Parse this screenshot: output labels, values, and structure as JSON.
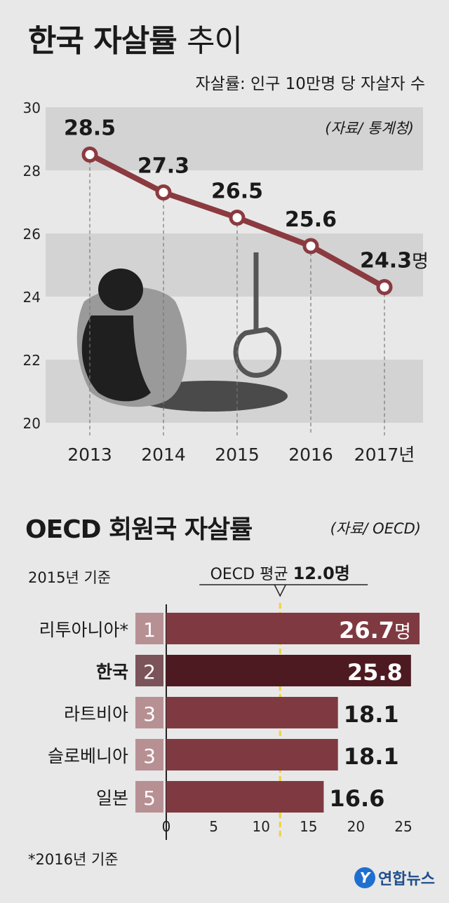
{
  "header": {
    "title_bold": "한국 자살률",
    "title_light": "추이",
    "subtitle": "자살률: 인구 10만명 당 자살자 수",
    "source": "(자료/ 통계청)"
  },
  "section2": {
    "title": "OECD 회원국 자살률",
    "source": "(자료/ OECD)",
    "basis": "2015년 기준",
    "avg_label": "OECD 평균",
    "avg_value": "12.0명",
    "footnote": "*2016년 기준"
  },
  "logo": {
    "glyph": "Y",
    "text": "연합뉴스"
  },
  "colors": {
    "line": "#8b3a40",
    "bar": "#7f3a41",
    "bar_highlight": "#4d1a21",
    "rank_box": "#b79094",
    "rank_box_highlight": "#7a5458",
    "band": "#d3d3d3",
    "avg_line": "#f2d22e"
  },
  "chart_data": [
    {
      "type": "line",
      "x": [
        "2013",
        "2014",
        "2015",
        "2016",
        "2017"
      ],
      "x_unit_suffix": "년",
      "values": [
        28.5,
        27.3,
        26.5,
        25.6,
        24.3
      ],
      "value_labels": [
        "28.5",
        "27.3",
        "26.5",
        "25.6",
        "24.3"
      ],
      "value_unit": "명",
      "ylim": [
        20,
        30
      ],
      "yticks": [
        "20",
        "22",
        "24",
        "26",
        "28",
        "30"
      ]
    },
    {
      "type": "bar",
      "orientation": "horizontal",
      "categories": [
        "리투아니아*",
        "한국",
        "라트비아",
        "슬로베니아",
        "일본"
      ],
      "ranks": [
        "1",
        "2",
        "3",
        "3",
        "5"
      ],
      "values": [
        26.7,
        25.8,
        18.1,
        18.1,
        16.6
      ],
      "value_labels": [
        "26.7",
        "25.8",
        "18.1",
        "18.1",
        "16.6"
      ],
      "value_unit": "명",
      "highlight": "한국",
      "reference_line": 12.0,
      "xlim": [
        0,
        25
      ],
      "xticks": [
        "0",
        "5",
        "10",
        "15",
        "20",
        "25"
      ]
    }
  ]
}
